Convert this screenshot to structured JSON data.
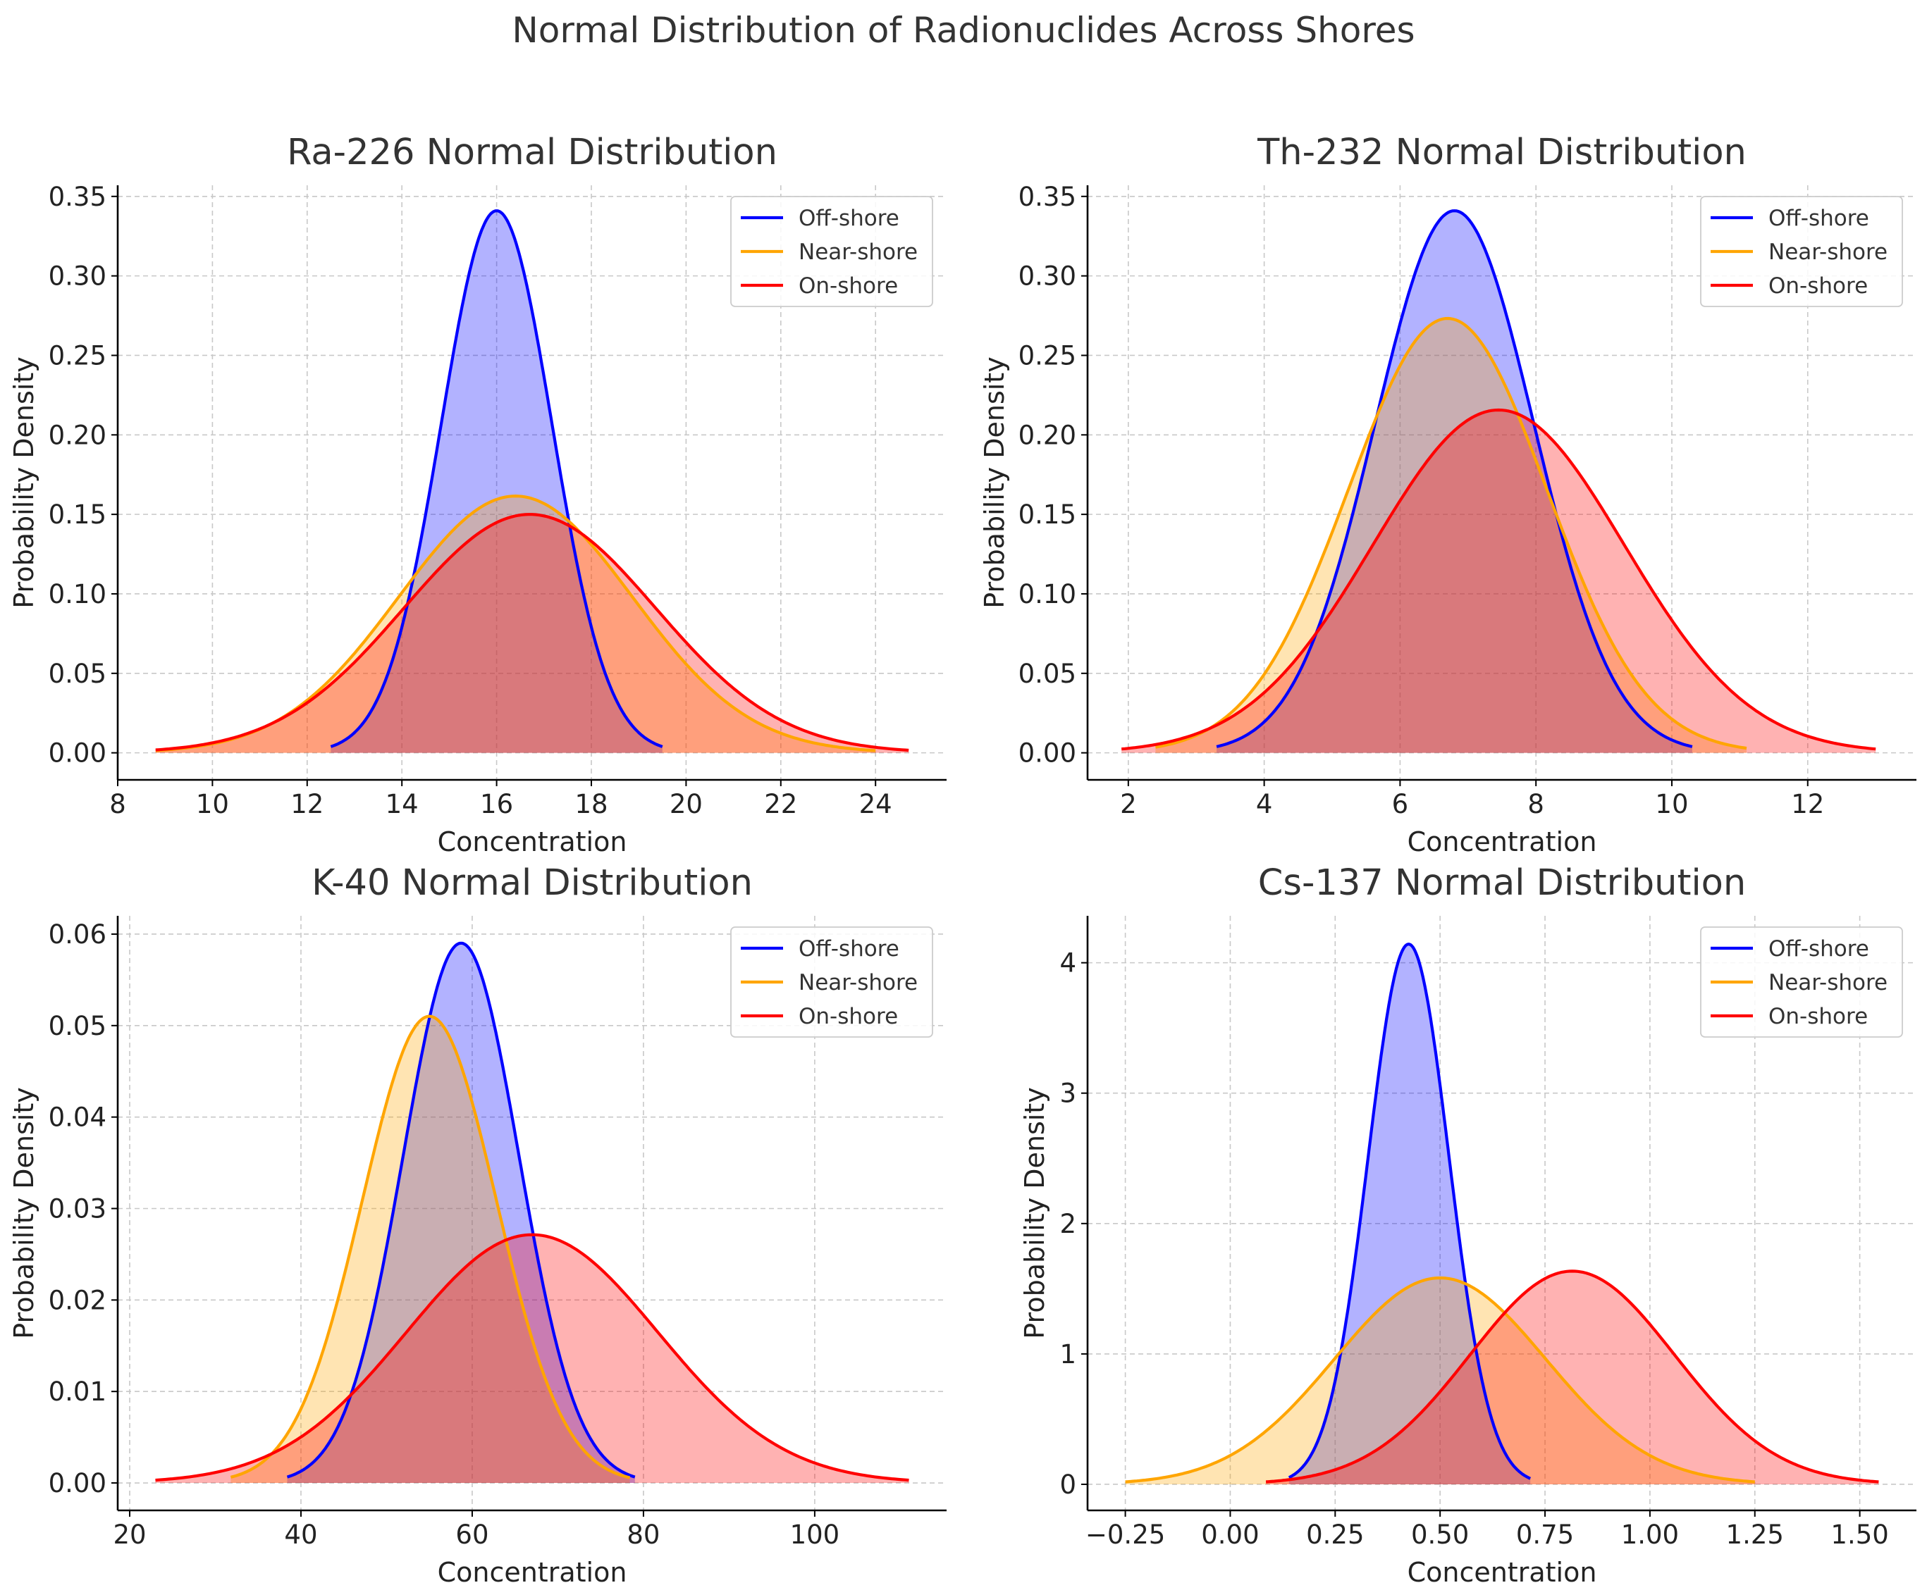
{
  "suptitle": "Normal Distribution of Radionuclides Across Shores",
  "colors": {
    "off_shore": "#0000ff",
    "near_shore": "#ffa500",
    "on_shore": "#ff0000",
    "grid": "#c8c8c8",
    "text": "#333333"
  },
  "chart_data": [
    {
      "type": "area",
      "title": "Ra-226 Normal Distribution",
      "xlabel": "Concentration",
      "ylabel": "Probability Density",
      "xlim": [
        8,
        25.5
      ],
      "ylim": [
        -0.017,
        0.357
      ],
      "xticks": [
        8,
        10,
        12,
        14,
        16,
        18,
        20,
        22,
        24
      ],
      "xtick_labels": [
        "8",
        "10",
        "12",
        "14",
        "16",
        "18",
        "20",
        "22",
        "24"
      ],
      "yticks": [
        0,
        0.05,
        0.1,
        0.15,
        0.2,
        0.25,
        0.3,
        0.35
      ],
      "ytick_labels": [
        "0.00",
        "0.05",
        "0.10",
        "0.15",
        "0.20",
        "0.25",
        "0.30",
        "0.35"
      ],
      "grid": true,
      "legend": "top-right",
      "series": [
        {
          "name": "Off-shore",
          "color": "#0000ff",
          "mean": 16.0,
          "std": 1.17,
          "x_range": [
            12.5,
            19.5
          ]
        },
        {
          "name": "Near-shore",
          "color": "#ffa500",
          "mean": 16.4,
          "std": 2.47,
          "x_range": [
            8.8,
            24.0
          ]
        },
        {
          "name": "On-shore",
          "color": "#ff0000",
          "mean": 16.7,
          "std": 2.66,
          "x_range": [
            8.8,
            24.7
          ]
        }
      ]
    },
    {
      "type": "area",
      "title": "Th-232 Normal Distribution",
      "xlabel": "Concentration",
      "ylabel": "Probability Density",
      "xlim": [
        1.4,
        13.6
      ],
      "ylim": [
        -0.017,
        0.357
      ],
      "xticks": [
        2,
        4,
        6,
        8,
        10,
        12
      ],
      "xtick_labels": [
        "2",
        "4",
        "6",
        "8",
        "10",
        "12"
      ],
      "yticks": [
        0,
        0.05,
        0.1,
        0.15,
        0.2,
        0.25,
        0.3,
        0.35
      ],
      "ytick_labels": [
        "0.00",
        "0.05",
        "0.10",
        "0.15",
        "0.20",
        "0.25",
        "0.30",
        "0.35"
      ],
      "grid": true,
      "legend": "top-right",
      "series": [
        {
          "name": "Off-shore",
          "color": "#0000ff",
          "mean": 6.8,
          "std": 1.17,
          "x_range": [
            3.3,
            10.3
          ]
        },
        {
          "name": "Near-shore",
          "color": "#ffa500",
          "mean": 6.7,
          "std": 1.46,
          "x_range": [
            2.4,
            11.1
          ]
        },
        {
          "name": "On-shore",
          "color": "#ff0000",
          "mean": 7.45,
          "std": 1.85,
          "x_range": [
            1.9,
            13.0
          ]
        }
      ]
    },
    {
      "type": "area",
      "title": "K-40 Normal Distribution",
      "xlabel": "Concentration",
      "ylabel": "Probability Density",
      "xlim": [
        18.6,
        115.4
      ],
      "ylim": [
        -0.003,
        0.062
      ],
      "xticks": [
        20,
        40,
        60,
        80,
        100
      ],
      "xtick_labels": [
        "20",
        "40",
        "60",
        "80",
        "100"
      ],
      "yticks": [
        0,
        0.01,
        0.02,
        0.03,
        0.04,
        0.05,
        0.06
      ],
      "ytick_labels": [
        "0.00",
        "0.01",
        "0.02",
        "0.03",
        "0.04",
        "0.05",
        "0.06"
      ],
      "grid": true,
      "legend": "top-right",
      "series": [
        {
          "name": "Off-shore",
          "color": "#0000ff",
          "mean": 58.7,
          "std": 6.76,
          "x_range": [
            38.4,
            79.0
          ]
        },
        {
          "name": "Near-shore",
          "color": "#ffa500",
          "mean": 55.0,
          "std": 7.82,
          "x_range": [
            31.8,
            78.4
          ]
        },
        {
          "name": "On-shore",
          "color": "#ff0000",
          "mean": 67.0,
          "std": 14.7,
          "x_range": [
            23.0,
            111.0
          ]
        }
      ]
    },
    {
      "type": "area",
      "title": "Cs-137 Normal Distribution",
      "xlabel": "Concentration",
      "ylabel": "Probability Density",
      "xlim": [
        -0.34,
        1.635
      ],
      "ylim": [
        -0.2,
        4.36
      ],
      "xticks": [
        -0.25,
        0,
        0.25,
        0.5,
        0.75,
        1.0,
        1.25,
        1.5
      ],
      "xtick_labels": [
        "−0.25",
        "0.00",
        "0.25",
        "0.50",
        "0.75",
        "1.00",
        "1.25",
        "1.50"
      ],
      "yticks": [
        0,
        1,
        2,
        3,
        4
      ],
      "ytick_labels": [
        "0",
        "1",
        "2",
        "3",
        "4"
      ],
      "grid": true,
      "legend": "top-right",
      "series": [
        {
          "name": "Off-shore",
          "color": "#0000ff",
          "mean": 0.425,
          "std": 0.0963,
          "x_range": [
            0.14,
            0.715
          ]
        },
        {
          "name": "Near-shore",
          "color": "#ffa500",
          "mean": 0.5,
          "std": 0.252,
          "x_range": [
            -0.25,
            1.25
          ]
        },
        {
          "name": "On-shore",
          "color": "#ff0000",
          "mean": 0.815,
          "std": 0.244,
          "x_range": [
            0.085,
            1.545
          ]
        }
      ]
    }
  ]
}
